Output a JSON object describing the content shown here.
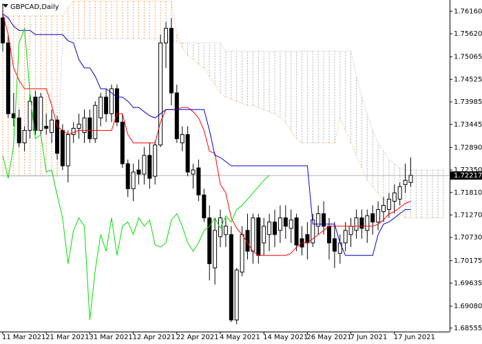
{
  "chart_data": {
    "type": "candlestick",
    "title": "GBPCAD,Daily",
    "categories": [
      "11 Mar 2021",
      null,
      null,
      null,
      null,
      null,
      null,
      null,
      "21 Mar 2021",
      null,
      null,
      null,
      null,
      null,
      null,
      null,
      "31 Mar 2021",
      null,
      null,
      null,
      null,
      null,
      null,
      null,
      "12 Apr 2021",
      null,
      null,
      null,
      null,
      null,
      null,
      null,
      "22 Apr 2021",
      null,
      null,
      null,
      null,
      null,
      null,
      null,
      "4 May 2021",
      null,
      null,
      null,
      null,
      null,
      null,
      null,
      "14 May 2021",
      null,
      null,
      null,
      null,
      null,
      null,
      null,
      "26 May 2021",
      null,
      null,
      null,
      null,
      null,
      null,
      null,
      "7 Jun 2021",
      null,
      null,
      null,
      null,
      null,
      null,
      null,
      "17 Jun 2021",
      null,
      null,
      null,
      null,
      null,
      null,
      null,
      null,
      null
    ],
    "open": [
      1.76,
      1.754,
      1.737,
      1.736,
      1.73,
      1.733,
      1.741,
      1.733,
      1.734,
      1.7325,
      1.7355,
      1.733,
      1.7245,
      1.732,
      1.7335,
      1.7325,
      1.736,
      1.731,
      1.736,
      1.741,
      1.737,
      1.743,
      1.735,
      1.725,
      1.719,
      1.7235,
      1.7225,
      1.727,
      1.722,
      1.7295,
      1.754,
      1.7575,
      1.742,
      1.73,
      1.732,
      1.7225,
      1.724,
      1.7175,
      1.712,
      1.7,
      1.7075,
      1.708,
      1.708,
      1.6875,
      1.699,
      1.709,
      1.704,
      1.712,
      1.706,
      1.708,
      1.711,
      1.709,
      1.712,
      1.7095,
      1.712,
      1.707,
      1.708,
      1.706,
      1.71,
      1.713,
      1.71,
      1.707,
      1.7035,
      1.706,
      1.708,
      1.709,
      1.712,
      1.709,
      1.713,
      1.711,
      1.7135,
      1.714,
      1.716,
      1.7165,
      1.72,
      1.7205,
      null,
      null,
      null,
      null,
      null,
      null
    ],
    "high": [
      1.7635,
      1.756,
      1.742,
      1.738,
      1.734,
      1.742,
      1.7425,
      1.742,
      1.737,
      1.738,
      1.7365,
      1.7345,
      1.733,
      1.735,
      1.737,
      1.738,
      1.738,
      1.74,
      1.742,
      1.743,
      1.744,
      1.744,
      1.737,
      1.726,
      1.725,
      1.726,
      1.729,
      1.73,
      1.7305,
      1.756,
      1.759,
      1.76,
      1.744,
      1.734,
      1.734,
      1.725,
      1.726,
      1.719,
      1.715,
      1.712,
      1.714,
      1.712,
      1.71,
      1.7,
      1.71,
      1.713,
      1.713,
      1.713,
      1.712,
      1.713,
      1.714,
      1.715,
      1.715,
      1.714,
      1.713,
      1.71,
      1.711,
      1.713,
      1.715,
      1.716,
      1.712,
      1.711,
      1.708,
      1.711,
      1.712,
      1.714,
      1.714,
      1.714,
      1.715,
      1.716,
      1.717,
      1.718,
      1.72,
      1.7205,
      1.725,
      1.7265,
      null,
      null,
      null,
      null,
      null,
      null
    ],
    "low": [
      1.752,
      1.736,
      1.734,
      1.729,
      1.728,
      1.731,
      1.732,
      1.732,
      1.732,
      1.73,
      1.726,
      1.7235,
      1.7205,
      1.73,
      1.731,
      1.73,
      1.73,
      1.73,
      1.734,
      1.735,
      1.735,
      1.734,
      1.724,
      1.717,
      1.716,
      1.72,
      1.72,
      1.719,
      1.72,
      1.729,
      1.748,
      1.739,
      1.73,
      1.728,
      1.722,
      1.719,
      1.716,
      1.711,
      1.697,
      1.696,
      1.705,
      1.705,
      1.687,
      1.6865,
      1.698,
      1.702,
      1.701,
      1.701,
      1.703,
      1.704,
      1.705,
      1.706,
      1.707,
      1.706,
      1.704,
      1.703,
      1.702,
      1.705,
      1.708,
      1.708,
      1.702,
      1.7,
      1.701,
      1.704,
      1.705,
      1.707,
      1.707,
      1.706,
      1.708,
      1.709,
      1.711,
      1.712,
      1.713,
      1.715,
      1.718,
      1.7195,
      null,
      null,
      null,
      null,
      null,
      null
    ],
    "close": [
      1.754,
      1.737,
      1.736,
      1.73,
      1.733,
      1.74,
      1.733,
      1.741,
      1.7335,
      1.7355,
      1.7275,
      1.7245,
      1.732,
      1.7335,
      1.7345,
      1.736,
      1.731,
      1.739,
      1.741,
      1.737,
      1.743,
      1.735,
      1.725,
      1.719,
      1.723,
      1.7225,
      1.727,
      1.7215,
      1.7295,
      1.754,
      1.7575,
      1.742,
      1.731,
      1.732,
      1.723,
      1.7235,
      1.7175,
      1.712,
      1.701,
      1.709,
      1.712,
      1.71,
      1.6875,
      1.6995,
      1.708,
      1.704,
      1.712,
      1.703,
      1.71,
      1.711,
      1.708,
      1.712,
      1.71,
      1.7115,
      1.7055,
      1.705,
      1.706,
      1.7115,
      1.713,
      1.71,
      1.706,
      1.704,
      1.706,
      1.709,
      1.71,
      1.712,
      1.7095,
      1.7125,
      1.711,
      1.714,
      1.715,
      1.7165,
      1.718,
      1.7195,
      1.721,
      1.7222,
      null,
      null,
      null,
      null,
      null,
      null
    ],
    "up_color": "#ffffff",
    "down_color": "#000000",
    "lines": [
      {
        "color": "#ff0000",
        "values": [
          1.761,
          1.756,
          1.748,
          1.745,
          1.743,
          1.743,
          1.743,
          1.743,
          1.743,
          1.739,
          1.734,
          1.733,
          1.732,
          1.7325,
          1.733,
          1.733,
          1.733,
          1.733,
          1.733,
          1.733,
          1.733,
          1.737,
          1.737,
          1.732,
          1.73,
          1.73,
          1.73,
          1.73,
          1.73,
          1.735,
          1.738,
          1.738,
          1.738,
          1.7385,
          1.7385,
          1.7375,
          1.736,
          1.733,
          1.728,
          1.7275,
          1.72,
          1.718,
          1.712,
          1.7095,
          1.708,
          1.706,
          1.704,
          1.703,
          1.703,
          1.703,
          1.703,
          1.703,
          1.703,
          1.7035,
          1.705,
          1.706,
          1.706,
          1.707,
          1.708,
          1.709,
          1.71,
          1.71,
          1.71,
          1.71,
          1.71,
          1.71,
          1.71,
          1.71,
          1.71,
          1.7105,
          1.7115,
          1.713,
          1.7135,
          1.7145,
          1.7155,
          1.716,
          null,
          null,
          null,
          null,
          null,
          null
        ]
      },
      {
        "color": "#0000cc",
        "values": [
          1.761,
          1.76,
          1.758,
          1.757,
          1.757,
          1.757,
          1.756,
          1.756,
          1.756,
          1.756,
          1.756,
          1.756,
          1.7545,
          1.754,
          1.75,
          1.748,
          1.748,
          1.746,
          1.743,
          1.743,
          1.742,
          1.741,
          1.741,
          1.74,
          1.7385,
          1.7385,
          1.7375,
          1.7365,
          1.736,
          1.737,
          1.738,
          1.738,
          1.738,
          1.738,
          1.738,
          1.738,
          1.738,
          1.738,
          1.733,
          1.727,
          1.7265,
          1.7255,
          1.7245,
          1.7245,
          1.7245,
          1.7245,
          1.7245,
          1.7245,
          1.7245,
          1.7245,
          1.7245,
          1.7245,
          1.7245,
          1.7245,
          1.7245,
          1.7245,
          1.7245,
          1.7105,
          1.7105,
          1.7105,
          1.7105,
          1.7105,
          1.706,
          1.703,
          1.703,
          1.703,
          1.703,
          1.703,
          1.703,
          1.708,
          1.7105,
          1.711,
          1.712,
          1.713,
          1.714,
          1.714,
          null,
          null,
          null,
          null,
          null,
          null
        ]
      },
      {
        "color": "#00dd00",
        "values": [
          1.727,
          1.7215,
          1.7295,
          1.754,
          1.7575,
          1.742,
          1.731,
          1.732,
          1.723,
          1.7235,
          1.7175,
          1.712,
          1.701,
          1.709,
          1.712,
          1.71,
          1.6875,
          1.6995,
          1.708,
          1.704,
          1.712,
          1.703,
          1.71,
          1.711,
          1.708,
          1.712,
          1.71,
          1.7115,
          1.7055,
          1.705,
          1.706,
          1.7115,
          1.713,
          1.71,
          1.706,
          1.704,
          1.706,
          1.709,
          1.71,
          1.712,
          1.7095,
          1.7125,
          1.711,
          1.714,
          1.715,
          1.7165,
          1.718,
          1.7195,
          1.721,
          1.7222,
          null,
          null,
          null,
          null,
          null,
          null,
          null,
          null,
          null,
          null,
          null,
          null,
          null,
          null,
          null,
          null,
          null,
          null,
          null,
          null,
          null,
          null,
          null,
          null,
          null,
          null,
          null,
          null,
          null,
          null,
          null,
          null
        ]
      }
    ],
    "cloud": {
      "a": [
        1.7605,
        1.7605,
        1.7605,
        1.7605,
        1.7605,
        1.7605,
        1.7605,
        1.7605,
        1.7605,
        1.7605,
        1.7605,
        1.7605,
        1.7625,
        1.764,
        1.764,
        1.764,
        1.764,
        1.764,
        1.764,
        1.764,
        1.764,
        1.764,
        1.764,
        1.764,
        1.764,
        1.764,
        1.764,
        1.764,
        1.764,
        1.764,
        1.764,
        1.764,
        1.756,
        1.753,
        1.751,
        1.75,
        1.749,
        1.748,
        1.746,
        1.744,
        1.742,
        1.741,
        1.7405,
        1.74,
        1.7395,
        1.739,
        1.739,
        1.7385,
        1.738,
        1.7375,
        1.737,
        1.736,
        1.735,
        1.733,
        1.731,
        1.73,
        1.73,
        1.73,
        1.73,
        1.73,
        1.73,
        1.73,
        1.736,
        1.733,
        1.73,
        1.727,
        1.724,
        1.721,
        1.7195,
        1.718,
        1.7165,
        1.7155,
        1.714,
        1.713,
        1.712,
        1.712,
        1.712,
        1.712,
        1.712,
        1.712,
        1.712,
        1.712
      ],
      "b": [
        1.722,
        1.722,
        1.722,
        1.722,
        1.722,
        1.722,
        1.722,
        1.722,
        1.722,
        1.722,
        1.722,
        1.755,
        1.755,
        1.755,
        1.755,
        1.755,
        1.755,
        1.755,
        1.755,
        1.755,
        1.755,
        1.755,
        1.755,
        1.755,
        1.755,
        1.755,
        1.755,
        1.755,
        1.755,
        1.755,
        1.755,
        1.755,
        1.754,
        1.754,
        1.754,
        1.754,
        1.754,
        1.754,
        1.754,
        1.754,
        1.754,
        1.752,
        1.752,
        1.752,
        1.752,
        1.752,
        1.752,
        1.752,
        1.752,
        1.752,
        1.752,
        1.752,
        1.752,
        1.752,
        1.752,
        1.752,
        1.752,
        1.752,
        1.752,
        1.752,
        1.752,
        1.752,
        1.752,
        1.752,
        1.752,
        1.746,
        1.741,
        1.737,
        1.733,
        1.73,
        1.728,
        1.726,
        1.725,
        1.724,
        1.7235,
        1.7235,
        1.7235,
        1.7235,
        1.7235,
        1.7235,
        1.7235,
        1.7235
      ],
      "a_color": "#f4a460",
      "b_color": "#b0b0b0"
    },
    "last_price": 1.72217,
    "ylim": [
      1.6847,
      1.7643
    ],
    "yticks": [
      {
        "value": 1.7616,
        "label": "1.76160"
      },
      {
        "value": 1.7562,
        "label": "1.75620"
      },
      1.75065,
      1.74525,
      1.73985,
      1.73445,
      {
        "value": 1.7289,
        "label": "1.72890"
      },
      {
        "value": 1.7235,
        "label": "1.72350"
      },
      {
        "value": 1.7181,
        "label": "1.71810"
      },
      {
        "value": 1.7127,
        "label": "1.71270"
      },
      {
        "value": 1.7073,
        "label": "1.70730"
      },
      1.70175,
      1.69635,
      {
        "value": 1.6908,
        "label": "1.69080"
      },
      1.68555
    ]
  }
}
